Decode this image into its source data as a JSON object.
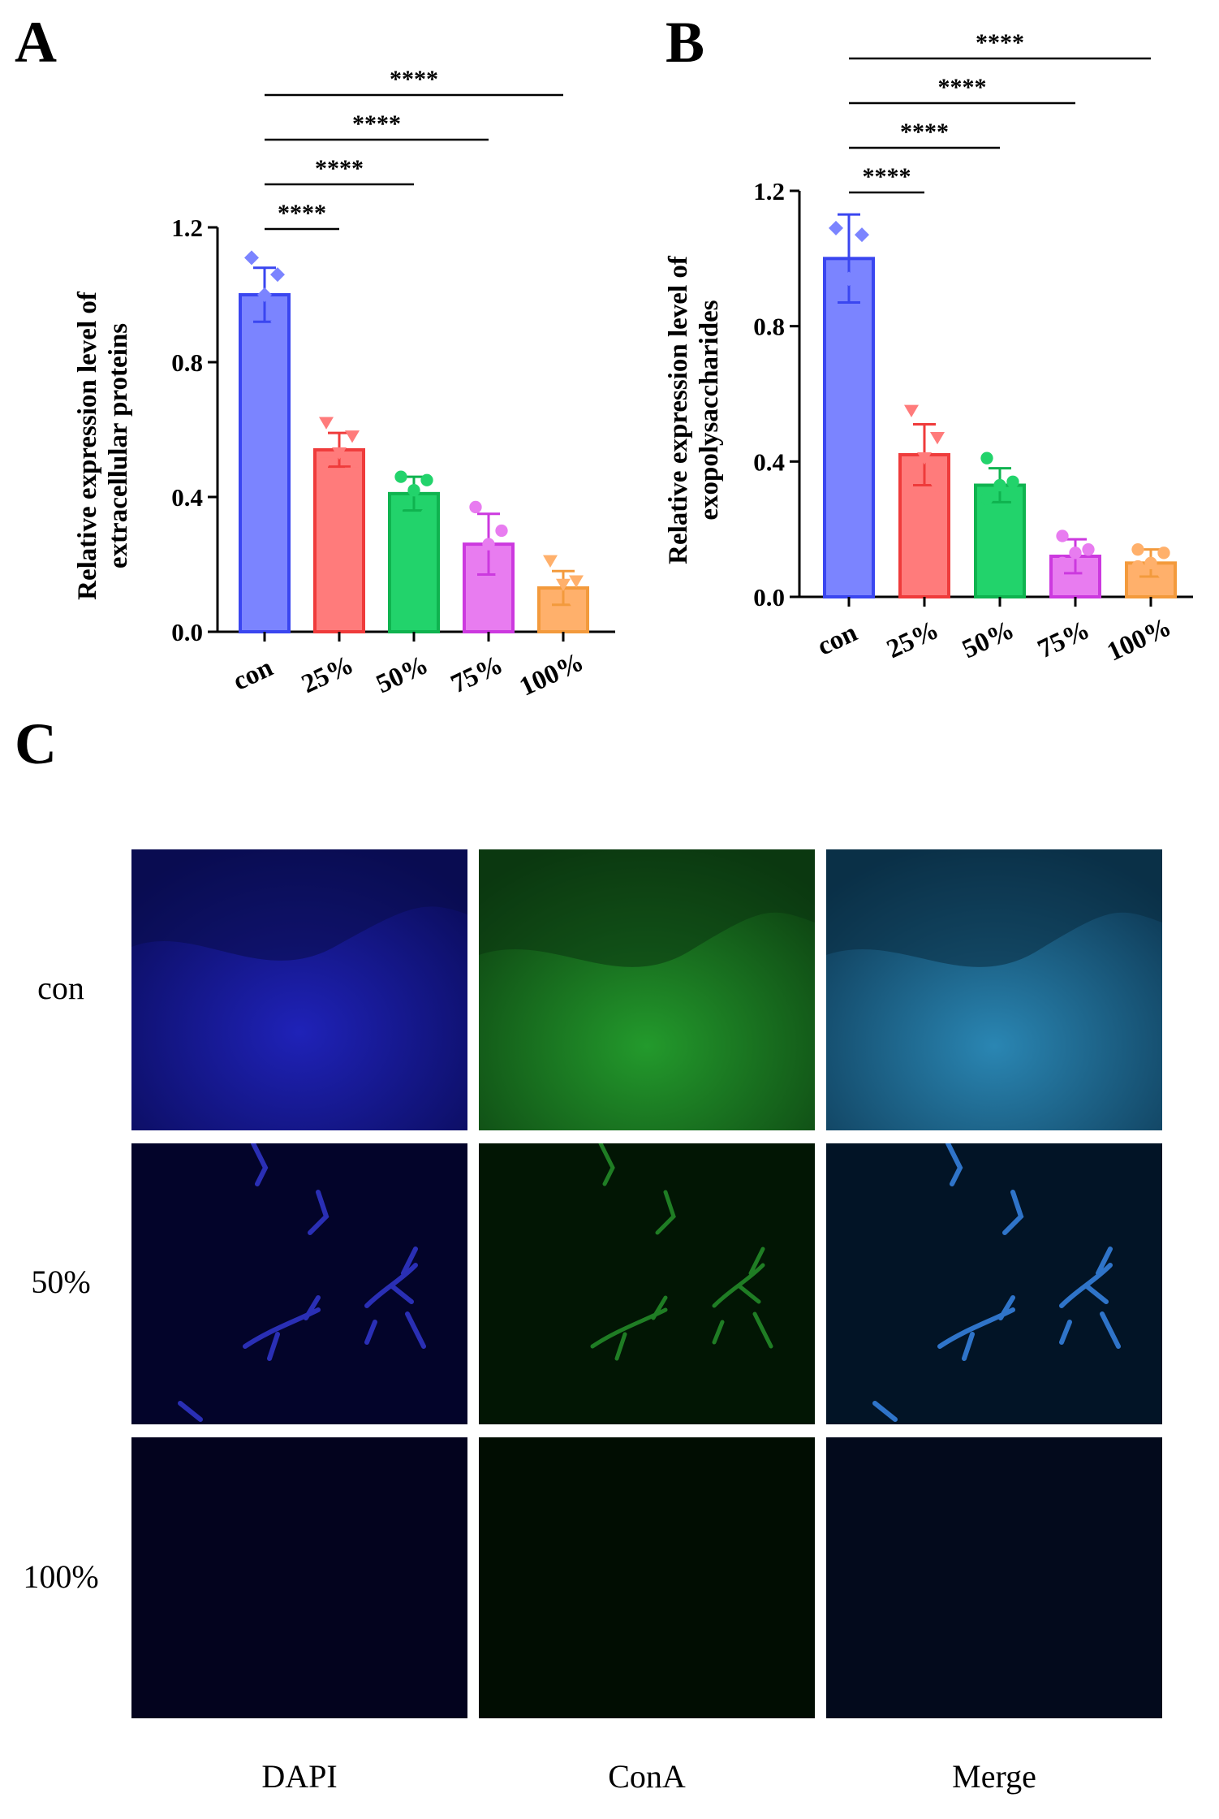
{
  "panels": {
    "a": "A",
    "b": "B",
    "c": "C"
  },
  "chart_data": [
    {
      "type": "bar",
      "panel": "A",
      "ylabel": [
        "Relative expression level of",
        "extracellular proteins"
      ],
      "categories": [
        "con",
        "25%",
        "50%",
        "75%",
        "100%"
      ],
      "values": [
        1.0,
        0.54,
        0.41,
        0.26,
        0.13
      ],
      "errors": [
        0.08,
        0.05,
        0.05,
        0.09,
        0.05
      ],
      "points": [
        [
          1.11,
          1.06,
          1.0,
          0.95,
          0.92
        ],
        [
          0.62,
          0.58,
          0.53,
          0.5,
          0.47
        ],
        [
          0.46,
          0.45,
          0.42,
          0.38,
          0.35
        ],
        [
          0.37,
          0.3,
          0.26,
          0.22,
          0.17
        ],
        [
          0.21,
          0.15,
          0.14,
          0.1,
          0.07
        ]
      ],
      "markers": [
        "diamond",
        "triangle-down",
        "circle",
        "circle",
        "triangle-down"
      ],
      "colors": [
        "#7b84ff",
        "#ff7b7b",
        "#22d36b",
        "#e87cf0",
        "#ffb06b"
      ],
      "edge_colors": [
        "#3a46f0",
        "#ef3b3b",
        "#0fb34f",
        "#cc39df",
        "#f39a3c"
      ],
      "ylim": [
        0,
        1.2
      ],
      "yticks": [
        "0.0",
        "0.4",
        "0.8",
        "1.2"
      ],
      "significance": [
        {
          "from": "con",
          "to": "25%",
          "label": "****"
        },
        {
          "from": "con",
          "to": "50%",
          "label": "****"
        },
        {
          "from": "con",
          "to": "75%",
          "label": "****"
        },
        {
          "from": "con",
          "to": "100%",
          "label": "****"
        }
      ]
    },
    {
      "type": "bar",
      "panel": "B",
      "ylabel": [
        "Relative expression level of",
        "exopolysaccharides"
      ],
      "categories": [
        "con",
        "25%",
        "50%",
        "75%",
        "100%"
      ],
      "values": [
        1.0,
        0.42,
        0.33,
        0.12,
        0.1
      ],
      "errors": [
        0.13,
        0.09,
        0.05,
        0.05,
        0.04
      ],
      "points": [
        [
          1.09,
          1.07,
          0.94,
          0.85,
          0.81
        ],
        [
          0.55,
          0.47,
          0.41,
          0.37,
          0.32
        ],
        [
          0.41,
          0.34,
          0.33,
          0.29,
          0.3
        ],
        [
          0.18,
          0.14,
          0.13,
          0.1,
          0.07
        ],
        [
          0.14,
          0.13,
          0.1,
          0.09,
          0.07
        ]
      ],
      "markers": [
        "diamond",
        "triangle-down",
        "circle",
        "circle",
        "circle"
      ],
      "colors": [
        "#7b84ff",
        "#ff7b7b",
        "#22d36b",
        "#e87cf0",
        "#ffb06b"
      ],
      "edge_colors": [
        "#3a46f0",
        "#ef3b3b",
        "#0fb34f",
        "#cc39df",
        "#f39a3c"
      ],
      "ylim": [
        0,
        1.2
      ],
      "yticks": [
        "0.0",
        "0.4",
        "0.8",
        "1.2"
      ],
      "significance": [
        {
          "from": "con",
          "to": "25%",
          "label": "****"
        },
        {
          "from": "con",
          "to": "50%",
          "label": "****"
        },
        {
          "from": "con",
          "to": "75%",
          "label": "****"
        },
        {
          "from": "con",
          "to": "100%",
          "label": "****"
        }
      ]
    }
  ],
  "microscopy": {
    "rows": [
      "con",
      "50%",
      "100%"
    ],
    "columns": [
      "DAPI",
      "ConA",
      "Merge"
    ]
  }
}
